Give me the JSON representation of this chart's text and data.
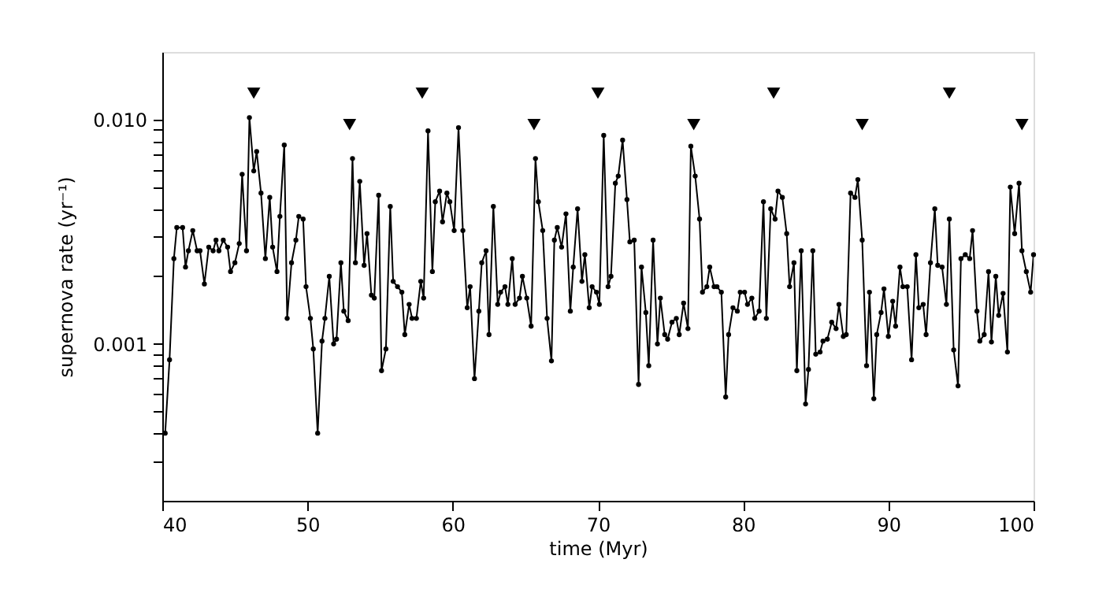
{
  "chart_data": {
    "type": "line",
    "xlabel": "time (Myr)",
    "ylabel": "supernova rate (yr⁻¹)",
    "log": "y",
    "xlim": [
      40,
      100
    ],
    "xticks": [
      40,
      50,
      60,
      70,
      80,
      90,
      100
    ],
    "ylim": [
      0.0002,
      0.02
    ],
    "yticks": [
      {
        "value": 0.0003,
        "label": null
      },
      {
        "value": 0.0004,
        "label": null
      },
      {
        "value": 0.0005,
        "label": null
      },
      {
        "value": 0.0006,
        "label": null
      },
      {
        "value": 0.0007,
        "label": null
      },
      {
        "value": 0.0008,
        "label": null
      },
      {
        "value": 0.0009,
        "label": null
      },
      0.001,
      {
        "value": 0.002,
        "label": null
      },
      {
        "value": 0.003,
        "label": null
      },
      {
        "value": 0.004,
        "label": null
      },
      {
        "value": 0.005,
        "label": null
      },
      {
        "value": 0.006,
        "label": null
      },
      {
        "value": 0.007,
        "label": null
      },
      {
        "value": 0.008,
        "label": null
      },
      {
        "value": 0.009,
        "label": null
      },
      {
        "value": 0.01,
        "label": "0.010"
      }
    ],
    "grid": false,
    "line_style": "solid",
    "x": [
      40.2,
      40.5,
      40.8,
      41.0,
      41.4,
      41.6,
      41.8,
      42.1,
      42.4,
      42.6,
      42.9,
      43.2,
      43.5,
      43.7,
      43.9,
      44.2,
      44.5,
      44.7,
      45.0,
      45.3,
      45.5,
      45.8,
      46.0,
      46.3,
      46.5,
      46.8,
      47.1,
      47.4,
      47.6,
      47.9,
      48.1,
      48.4,
      48.6,
      48.9,
      49.2,
      49.4,
      49.7,
      49.9,
      50.2,
      50.4,
      50.7,
      51.0,
      51.2,
      51.5,
      51.8,
      52.0,
      52.3,
      52.5,
      52.8,
      53.1,
      53.3,
      53.6,
      53.9,
      54.1,
      54.4,
      54.6,
      54.9,
      55.1,
      55.4,
      55.7,
      55.9,
      56.2,
      56.5,
      56.7,
      57.0,
      57.2,
      57.5,
      57.8,
      58.0,
      58.3,
      58.6,
      58.8,
      59.1,
      59.3,
      59.6,
      59.8,
      60.1,
      60.4,
      60.7,
      61.0,
      61.2,
      61.5,
      61.8,
      62.0,
      62.3,
      62.5,
      62.8,
      63.1,
      63.3,
      63.6,
      63.8,
      64.1,
      64.3,
      64.6,
      64.8,
      65.1,
      65.4,
      65.7,
      65.9,
      66.2,
      66.5,
      66.8,
      67.0,
      67.2,
      67.5,
      67.8,
      68.1,
      68.3,
      68.6,
      68.9,
      69.1,
      69.4,
      69.6,
      69.9,
      70.1,
      70.4,
      70.7,
      70.9,
      71.2,
      71.4,
      71.7,
      72.0,
      72.2,
      72.5,
      72.8,
      73.0,
      73.3,
      73.5,
      73.8,
      74.1,
      74.3,
      74.6,
      74.8,
      75.1,
      75.4,
      75.6,
      75.9,
      76.2,
      76.4,
      76.7,
      77.0,
      77.2,
      77.5,
      77.7,
      78.0,
      78.2,
      78.5,
      78.8,
      79.0,
      79.3,
      79.6,
      79.8,
      80.1,
      80.3,
      80.6,
      80.8,
      81.1,
      81.4,
      81.6,
      81.9,
      82.2,
      82.4,
      82.7,
      83.0,
      83.2,
      83.5,
      83.7,
      84.0,
      84.3,
      84.5,
      84.8,
      85.0,
      85.3,
      85.5,
      85.8,
      86.1,
      86.4,
      86.6,
      86.9,
      87.1,
      87.4,
      87.7,
      87.9,
      88.2,
      88.5,
      88.7,
      89.0,
      89.2,
      89.5,
      89.7,
      90.0,
      90.3,
      90.5,
      90.8,
      91.0,
      91.3,
      91.6,
      91.9,
      92.1,
      92.4,
      92.6,
      92.9,
      93.2,
      93.4,
      93.7,
      94.0,
      94.2,
      94.5,
      94.8,
      95.0,
      95.3,
      95.6,
      95.8,
      96.1,
      96.3,
      96.6,
      96.9,
      97.1,
      97.4,
      97.6,
      97.9,
      98.2,
      98.4,
      98.7,
      99.0,
      99.2,
      99.5,
      99.8,
      100.0
    ],
    "series": [
      {
        "marker": "circle",
        "color": "#000000",
        "values": [
          0.0004,
          0.00085,
          0.0024,
          0.0033,
          0.0033,
          0.0022,
          0.0026,
          0.0032,
          0.0026,
          0.0026,
          0.00185,
          0.0027,
          0.0026,
          0.0029,
          0.0026,
          0.0029,
          0.0027,
          0.0021,
          0.0023,
          0.0028,
          0.0057,
          0.0026,
          0.0102,
          0.0059,
          0.0072,
          0.0047,
          0.0024,
          0.0045,
          0.0027,
          0.0021,
          0.0037,
          0.0077,
          0.0013,
          0.0023,
          0.0029,
          0.0037,
          0.0036,
          0.0018,
          0.0013,
          0.00095,
          0.0004,
          0.00103,
          0.0013,
          0.002,
          0.001,
          0.00105,
          0.0023,
          0.0014,
          0.00127,
          0.0067,
          0.0023,
          0.0053,
          0.00224,
          0.0031,
          0.00165,
          0.0016,
          0.0046,
          0.00076,
          0.00095,
          0.0041,
          0.0019,
          0.0018,
          0.0017,
          0.0011,
          0.0015,
          0.0013,
          0.0013,
          0.0019,
          0.0016,
          0.0089,
          0.0021,
          0.0043,
          0.0048,
          0.0035,
          0.0047,
          0.0043,
          0.0032,
          0.0092,
          0.0032,
          0.00145,
          0.0018,
          0.0007,
          0.0014,
          0.0023,
          0.0026,
          0.0011,
          0.0041,
          0.0015,
          0.0017,
          0.0018,
          0.0015,
          0.0024,
          0.0015,
          0.0016,
          0.002,
          0.0016,
          0.0012,
          0.0067,
          0.0043,
          0.0032,
          0.0013,
          0.00084,
          0.0029,
          0.0033,
          0.0027,
          0.0038,
          0.0014,
          0.0022,
          0.004,
          0.0019,
          0.0025,
          0.00145,
          0.0018,
          0.0017,
          0.0015,
          0.0085,
          0.0018,
          0.002,
          0.0052,
          0.0056,
          0.0081,
          0.0044,
          0.00285,
          0.0029,
          0.00066,
          0.0022,
          0.00138,
          0.0008,
          0.0029,
          0.001,
          0.0016,
          0.0011,
          0.00105,
          0.00125,
          0.0013,
          0.0011,
          0.00152,
          0.00117,
          0.0076,
          0.0056,
          0.0036,
          0.0017,
          0.0018,
          0.0022,
          0.0018,
          0.0018,
          0.0017,
          0.00058,
          0.0011,
          0.00145,
          0.0014,
          0.0017,
          0.0017,
          0.0015,
          0.0016,
          0.0013,
          0.0014,
          0.0043,
          0.0013,
          0.004,
          0.0036,
          0.0048,
          0.0045,
          0.0031,
          0.0018,
          0.0023,
          0.00076,
          0.0026,
          0.00054,
          0.00077,
          0.0026,
          0.0009,
          0.00092,
          0.00103,
          0.00105,
          0.00125,
          0.00117,
          0.0015,
          0.00108,
          0.0011,
          0.0047,
          0.0045,
          0.0054,
          0.0029,
          0.0008,
          0.0017,
          0.00057,
          0.0011,
          0.00138,
          0.00176,
          0.00108,
          0.00155,
          0.0012,
          0.0022,
          0.0018,
          0.0018,
          0.00085,
          0.0025,
          0.00145,
          0.0015,
          0.0011,
          0.0023,
          0.004,
          0.00224,
          0.0022,
          0.0015,
          0.0036,
          0.00094,
          0.00065,
          0.0024,
          0.0025,
          0.0024,
          0.0032,
          0.0014,
          0.00103,
          0.0011,
          0.0021,
          0.00102,
          0.002,
          0.00134,
          0.00168,
          0.00092,
          0.005,
          0.0031,
          0.0052,
          0.0026,
          0.0021,
          0.0017,
          0.0025
        ]
      },
      {
        "type": "scatter",
        "marker": "triangle",
        "color": "#000000",
        "x": [
          46.3,
          57.9,
          70.0,
          82.1,
          94.2
        ],
        "values": [
          0.0131,
          0.0131,
          0.0131,
          0.0131,
          0.0131
        ]
      },
      {
        "type": "scatter",
        "marker": "triangle",
        "color": "#000000",
        "x": [
          52.9,
          65.6,
          76.6,
          88.2,
          99.2
        ],
        "values": [
          0.0095,
          0.0095,
          0.0095,
          0.0095,
          0.0095
        ]
      }
    ]
  }
}
